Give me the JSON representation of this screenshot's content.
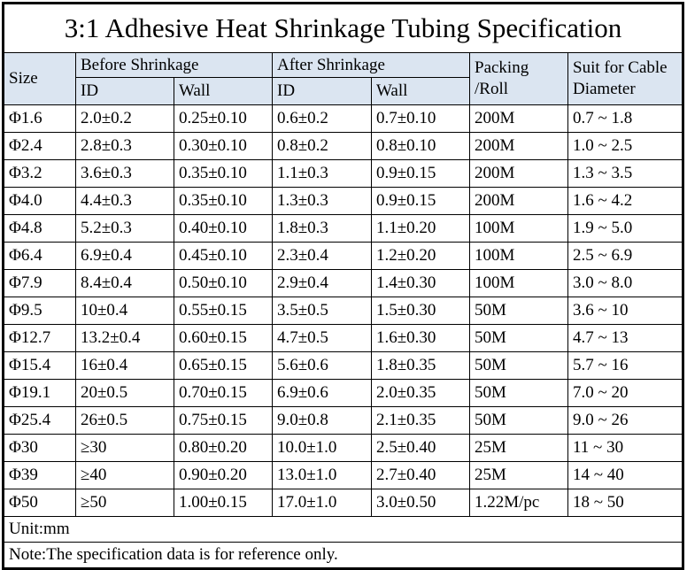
{
  "title": "3:1 Adhesive Heat Shrinkage Tubing Specification",
  "header": {
    "size": "Size",
    "before_shrinkage": "Before Shrinkage",
    "after_shrinkage": "After Shrinkage",
    "packing_line1": "Packing",
    "packing_line2": "/Roll",
    "suit_line1": "Suit for Cable",
    "suit_line2": "Diameter",
    "id_before": "ID",
    "wall_before": "Wall",
    "id_after": "ID",
    "wall_after": "Wall"
  },
  "rows": [
    [
      "Φ1.6",
      "2.0±0.2",
      "0.25±0.10",
      "0.6±0.2",
      "0.7±0.10",
      "200M",
      "0.7 ~ 1.8"
    ],
    [
      "Φ2.4",
      "2.8±0.3",
      "0.30±0.10",
      "0.8±0.2",
      "0.8±0.10",
      "200M",
      "1.0 ~ 2.5"
    ],
    [
      "Φ3.2",
      "3.6±0.3",
      "0.35±0.10",
      "1.1±0.3",
      "0.9±0.15",
      "200M",
      "1.3 ~ 3.5"
    ],
    [
      "Φ4.0",
      "4.4±0.3",
      "0.35±0.10",
      "1.3±0.3",
      "0.9±0.15",
      "200M",
      "1.6 ~ 4.2"
    ],
    [
      "Φ4.8",
      "5.2±0.3",
      "0.40±0.10",
      "1.8±0.3",
      "1.1±0.20",
      "100M",
      "1.9 ~ 5.0"
    ],
    [
      "Φ6.4",
      "6.9±0.4",
      "0.45±0.10",
      "2.3±0.4",
      "1.2±0.20",
      "100M",
      "2.5 ~ 6.9"
    ],
    [
      "Φ7.9",
      "8.4±0.4",
      "0.50±0.10",
      "2.9±0.4",
      "1.4±0.30",
      "100M",
      "3.0 ~ 8.0"
    ],
    [
      "Φ9.5",
      "10±0.4",
      "0.55±0.15",
      "3.5±0.5",
      "1.5±0.30",
      "50M",
      "3.6 ~ 10"
    ],
    [
      "Φ12.7",
      "13.2±0.4",
      "0.60±0.15",
      "4.7±0.5",
      "1.6±0.30",
      "50M",
      "4.7 ~ 13"
    ],
    [
      "Φ15.4",
      "16±0.4",
      "0.65±0.15",
      "5.6±0.6",
      "1.8±0.35",
      "50M",
      "5.7 ~ 16"
    ],
    [
      "Φ19.1",
      "20±0.5",
      "0.70±0.15",
      "6.9±0.6",
      "2.0±0.35",
      "50M",
      "7.0 ~ 20"
    ],
    [
      "Φ25.4",
      "26±0.5",
      "0.75±0.15",
      "9.0±0.8",
      "2.1±0.35",
      "50M",
      "9.0 ~ 26"
    ],
    [
      "Φ30",
      "≥30",
      "0.80±0.20",
      "10.0±1.0",
      "2.5±0.40",
      "25M",
      "11 ~ 30"
    ],
    [
      "Φ39",
      "≥40",
      "0.90±0.20",
      "13.0±1.0",
      "2.7±0.40",
      "25M",
      "14 ~ 40"
    ],
    [
      "Φ50",
      "≥50",
      "1.00±0.15",
      "17.0±1.0",
      "3.0±0.50",
      "1.22M/pc",
      "18 ~ 50"
    ]
  ],
  "footer": {
    "unit": "Unit:mm",
    "note": "Note:The specification data is for reference only."
  },
  "colors": {
    "header_bg": "#dbe5f1",
    "border": "#000000",
    "text": "#000000",
    "background": "#ffffff"
  }
}
